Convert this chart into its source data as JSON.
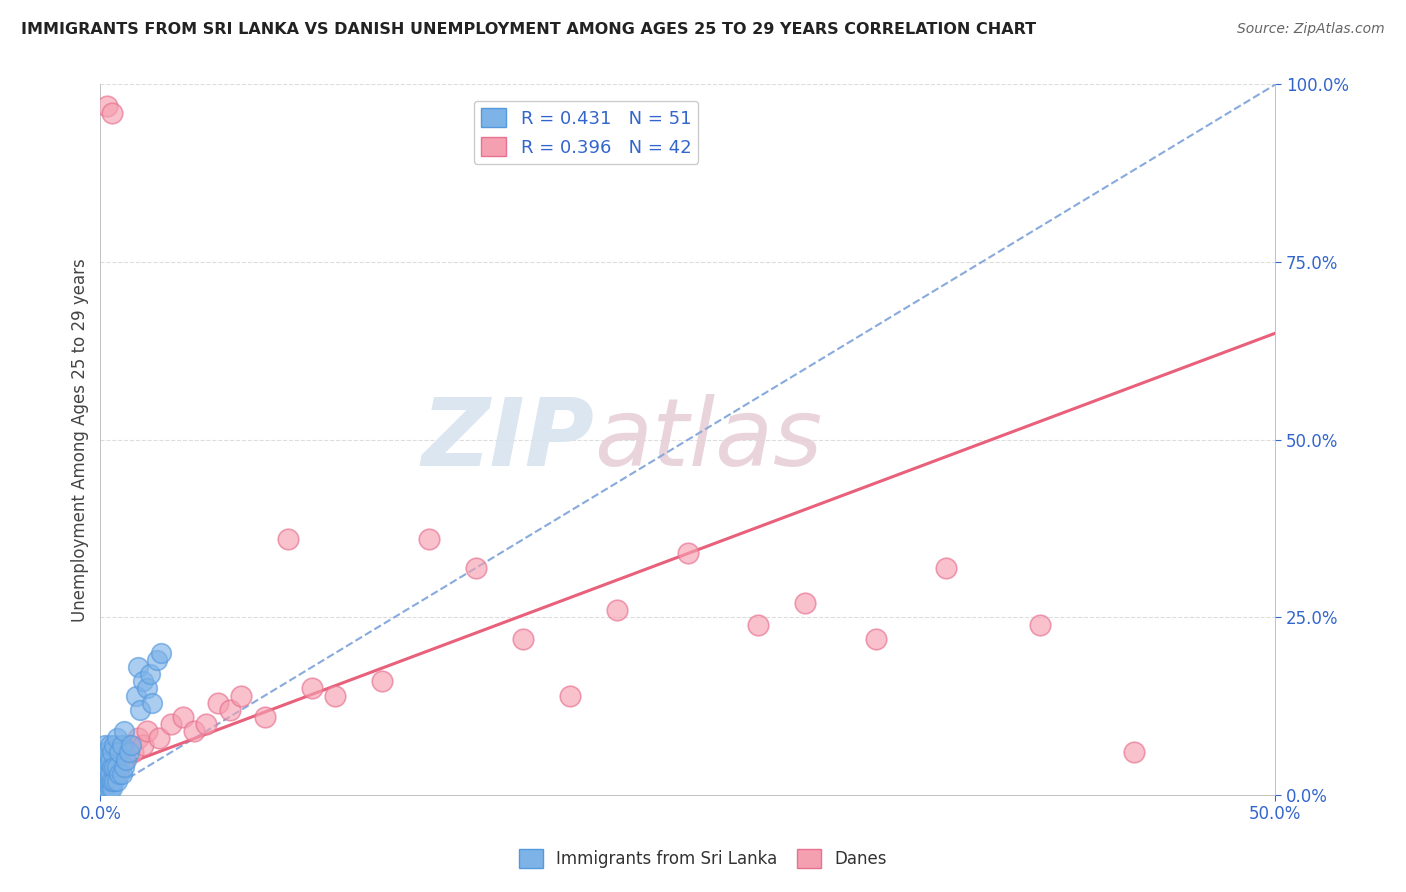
{
  "title": "IMMIGRANTS FROM SRI LANKA VS DANISH UNEMPLOYMENT AMONG AGES 25 TO 29 YEARS CORRELATION CHART",
  "source": "Source: ZipAtlas.com",
  "ylabel_label": "Unemployment Among Ages 25 to 29 years",
  "xmin": 0.0,
  "xmax": 0.5,
  "ymin": 0.0,
  "ymax": 1.0,
  "yticks": [
    0.0,
    0.25,
    0.5,
    0.75,
    1.0
  ],
  "xticks": [
    0.0,
    0.5
  ],
  "color_blue": "#7EB3E8",
  "color_blue_edge": "#5599DD",
  "color_pink": "#F5A0B0",
  "color_pink_edge": "#E87090",
  "color_blue_line": "#88AADD",
  "color_pink_line": "#E8607A",
  "watermark_color": "#D8E4F0",
  "watermark_color2": "#E8D0D8",
  "legend_r1": "R = 0.431",
  "legend_n1": "N = 51",
  "legend_r2": "R = 0.396",
  "legend_n2": "N = 42",
  "blue_line_x0": 0.0,
  "blue_line_y0": 0.0,
  "blue_line_x1": 0.5,
  "blue_line_y1": 1.0,
  "pink_line_x0": 0.0,
  "pink_line_y0": 0.03,
  "pink_line_x1": 0.5,
  "pink_line_y1": 0.65,
  "blue_dots_x": [
    0.001,
    0.001,
    0.001,
    0.001,
    0.001,
    0.002,
    0.002,
    0.002,
    0.002,
    0.002,
    0.002,
    0.002,
    0.003,
    0.003,
    0.003,
    0.003,
    0.003,
    0.003,
    0.004,
    0.004,
    0.004,
    0.004,
    0.004,
    0.005,
    0.005,
    0.005,
    0.005,
    0.006,
    0.006,
    0.006,
    0.007,
    0.007,
    0.007,
    0.008,
    0.008,
    0.009,
    0.009,
    0.01,
    0.01,
    0.011,
    0.012,
    0.013,
    0.015,
    0.016,
    0.017,
    0.018,
    0.02,
    0.021,
    0.022,
    0.024,
    0.026
  ],
  "blue_dots_y": [
    0.01,
    0.02,
    0.03,
    0.04,
    0.05,
    0.01,
    0.02,
    0.03,
    0.04,
    0.05,
    0.06,
    0.07,
    0.01,
    0.02,
    0.03,
    0.04,
    0.05,
    0.06,
    0.01,
    0.02,
    0.03,
    0.05,
    0.07,
    0.01,
    0.02,
    0.04,
    0.06,
    0.02,
    0.04,
    0.07,
    0.02,
    0.04,
    0.08,
    0.03,
    0.06,
    0.03,
    0.07,
    0.04,
    0.09,
    0.05,
    0.06,
    0.07,
    0.14,
    0.18,
    0.12,
    0.16,
    0.15,
    0.17,
    0.13,
    0.19,
    0.2
  ],
  "pink_dots_x": [
    0.001,
    0.002,
    0.003,
    0.004,
    0.005,
    0.006,
    0.007,
    0.008,
    0.009,
    0.01,
    0.012,
    0.014,
    0.016,
    0.018,
    0.02,
    0.025,
    0.03,
    0.035,
    0.04,
    0.045,
    0.05,
    0.055,
    0.06,
    0.07,
    0.08,
    0.09,
    0.1,
    0.12,
    0.14,
    0.16,
    0.18,
    0.2,
    0.22,
    0.25,
    0.28,
    0.3,
    0.33,
    0.36,
    0.4,
    0.44,
    0.003,
    0.005
  ],
  "pink_dots_y": [
    0.04,
    0.03,
    0.05,
    0.04,
    0.06,
    0.03,
    0.05,
    0.04,
    0.06,
    0.05,
    0.07,
    0.06,
    0.08,
    0.07,
    0.09,
    0.08,
    0.1,
    0.11,
    0.09,
    0.1,
    0.13,
    0.12,
    0.14,
    0.11,
    0.36,
    0.15,
    0.14,
    0.16,
    0.36,
    0.32,
    0.22,
    0.14,
    0.26,
    0.34,
    0.24,
    0.27,
    0.22,
    0.32,
    0.24,
    0.06,
    0.97,
    0.96
  ]
}
